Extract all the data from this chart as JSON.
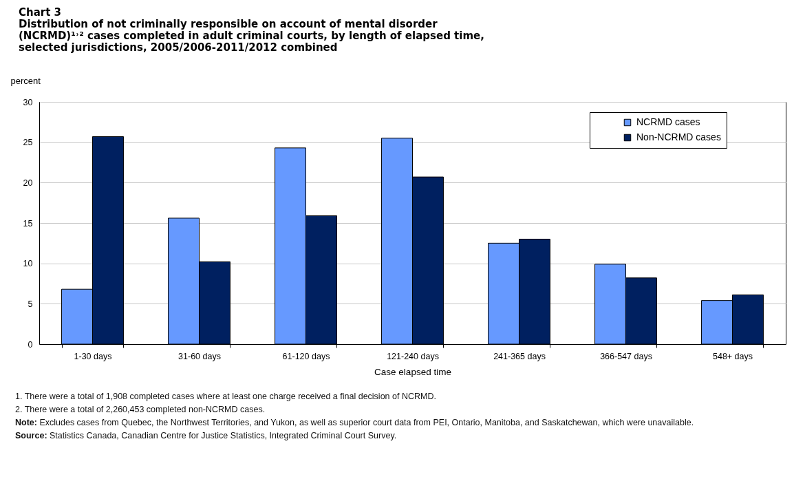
{
  "chart_data": {
    "type": "bar",
    "title": "Chart 3",
    "subtitle": "Distribution of not criminally responsible on account of mental disorder (NCRMD)¹˒² cases completed in adult criminal courts, by length of elapsed time, selected jurisdictions, 2005/2006-2011/2012  combined",
    "xlabel": "Case elapsed time",
    "ylabel": "percent",
    "categories": [
      "1-30 days",
      "31-60 days",
      "61-120 days",
      "121-240 days",
      "241-365 days",
      "366-547 days",
      "548+ days"
    ],
    "series": [
      {
        "name": "NCRMD cases",
        "color": "#6699ff",
        "values": [
          6.8,
          15.6,
          24.3,
          25.5,
          12.5,
          9.9,
          5.4
        ]
      },
      {
        "name": "Non-NCRMD cases",
        "color": "#002060",
        "values": [
          25.7,
          10.2,
          15.9,
          20.7,
          13.0,
          8.2,
          6.1
        ]
      }
    ],
    "ylim": [
      0,
      30
    ],
    "yticks": [
      0,
      5,
      10,
      15,
      20,
      25,
      30
    ],
    "grid": "y",
    "legend": "top right",
    "annotations": [
      "1. There were a total of 1,908 completed cases where at least one charge received a final decision of NCRMD.",
      "2. There were a total of 2,260,453 completed non-NCRMD cases.",
      "Note: Excludes cases from Quebec, the Northwest Territories, and Yukon, as well as superior court data from PEI, Ontario, Manitoba, and Saskatchewan, which were unavailable.",
      "Source: Statistics Canada, Canadian Centre for Justice Statistics, Integrated Criminal Court Survey."
    ]
  }
}
